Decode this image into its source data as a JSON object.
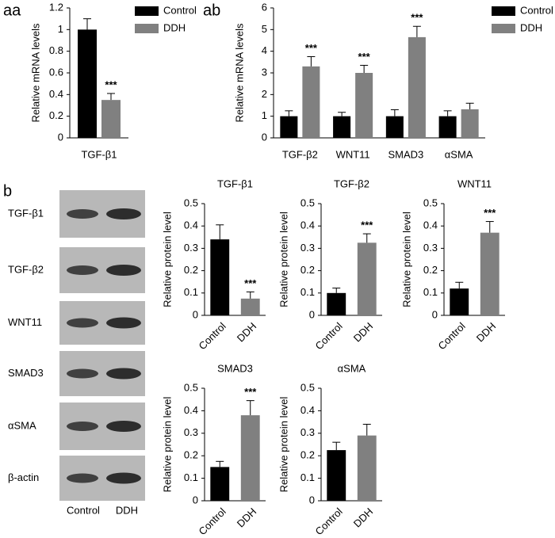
{
  "chart_data": [
    {
      "type": "bar",
      "panel": "aa",
      "y_label": "Relative mRNA levels",
      "categories": [
        "TGF-β1"
      ],
      "series": [
        {
          "name": "Control",
          "color": "#000000",
          "values": [
            1.0
          ],
          "errors": [
            0.1
          ],
          "annotations": [
            null
          ]
        },
        {
          "name": "DDH",
          "color": "#808080",
          "values": [
            0.35
          ],
          "errors": [
            0.06
          ],
          "annotations": [
            "***"
          ]
        }
      ],
      "ylim": [
        0,
        1.2
      ],
      "yticks": [
        0,
        0.2,
        0.4,
        0.6,
        0.8,
        1,
        1.2
      ],
      "legend": "right"
    },
    {
      "type": "bar",
      "panel": "ab",
      "y_label": "Relative mRNA levels",
      "categories": [
        "TGF-β2",
        "WNT11",
        "SMAD3",
        "αSMA"
      ],
      "series": [
        {
          "name": "Control",
          "color": "#000000",
          "values": [
            1,
            1,
            1,
            1
          ],
          "errors": [
            0.25,
            0.18,
            0.3,
            0.25
          ],
          "annotations": [
            null,
            null,
            null,
            null
          ]
        },
        {
          "name": "DDH",
          "color": "#808080",
          "values": [
            3.3,
            3.0,
            4.65,
            1.32
          ],
          "errors": [
            0.45,
            0.35,
            0.5,
            0.28
          ],
          "annotations": [
            "***",
            "***",
            "***",
            null
          ]
        }
      ],
      "ylim": [
        0,
        6
      ],
      "yticks": [
        0,
        1,
        2,
        3,
        4,
        5,
        6
      ],
      "legend": "right"
    },
    {
      "type": "bar",
      "title": "TGF-β1",
      "y_label": "Relative protein level",
      "categories": [
        "Control",
        "DDH"
      ],
      "values": [
        0.34,
        0.075
      ],
      "errors": [
        0.065,
        0.03
      ],
      "colors": [
        "#000000",
        "#808080"
      ],
      "annotations": [
        null,
        "***"
      ],
      "ylim": [
        0,
        0.5
      ],
      "yticks": [
        0,
        0.1,
        0.2,
        0.3,
        0.4,
        0.5
      ]
    },
    {
      "type": "bar",
      "title": "TGF-β2",
      "y_label": "Relative protein level",
      "categories": [
        "Control",
        "DDH"
      ],
      "values": [
        0.1,
        0.325
      ],
      "errors": [
        0.022,
        0.04
      ],
      "colors": [
        "#000000",
        "#808080"
      ],
      "annotations": [
        null,
        "***"
      ],
      "ylim": [
        0,
        0.5
      ],
      "yticks": [
        0,
        0.1,
        0.2,
        0.3,
        0.4,
        0.5
      ]
    },
    {
      "type": "bar",
      "title": "WNT11",
      "y_label": "Relative protein level",
      "categories": [
        "Control",
        "DDH"
      ],
      "values": [
        0.12,
        0.37
      ],
      "errors": [
        0.028,
        0.05
      ],
      "colors": [
        "#000000",
        "#808080"
      ],
      "annotations": [
        null,
        "***"
      ],
      "ylim": [
        0,
        0.5
      ],
      "yticks": [
        0,
        0.1,
        0.2,
        0.3,
        0.4,
        0.5
      ]
    },
    {
      "type": "bar",
      "title": "SMAD3",
      "y_label": "Relative protein level",
      "categories": [
        "Control",
        "DDH"
      ],
      "values": [
        0.15,
        0.38
      ],
      "errors": [
        0.025,
        0.065
      ],
      "colors": [
        "#000000",
        "#808080"
      ],
      "annotations": [
        null,
        "***"
      ],
      "ylim": [
        0,
        0.5
      ],
      "yticks": [
        0,
        0.1,
        0.2,
        0.3,
        0.4,
        0.5
      ]
    },
    {
      "type": "bar",
      "title": "αSMA",
      "y_label": "Relative protein level",
      "categories": [
        "Control",
        "DDH"
      ],
      "values": [
        0.225,
        0.29
      ],
      "errors": [
        0.035,
        0.05
      ],
      "colors": [
        "#000000",
        "#808080"
      ],
      "annotations": [
        null,
        null
      ],
      "ylim": [
        0,
        0.5
      ],
      "yticks": [
        0,
        0.1,
        0.2,
        0.3,
        0.4,
        0.5
      ]
    }
  ],
  "blot": {
    "panel": "b",
    "bands": [
      "TGF-β1",
      "TGF-β2",
      "WNT11",
      "SMAD3",
      "αSMA",
      "β-actin"
    ],
    "lanes": [
      "Control",
      "DDH"
    ]
  }
}
